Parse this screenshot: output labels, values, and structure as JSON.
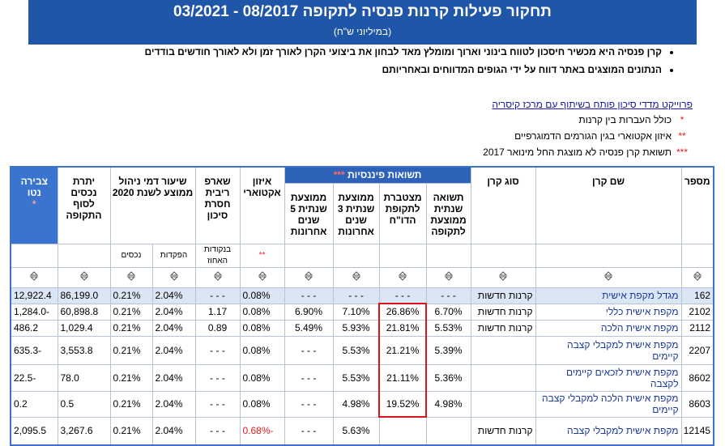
{
  "header": {
    "title": "תחקור פעילות קרנות פנסיה לתקופה 08/2017 - 03/2021",
    "subtitle": "(במיליוני ש\"ח)"
  },
  "bullets": [
    "קרן פנסיה היא מכשיר חיסכון לטווח בינוני וארוך ומומלץ מאד לבחון את ביצועי הקרן לאורך זמן ולא לאורך חודשים בודדים",
    "הנתונים המוצגים באתר דווח על ידי הגופים המדווחים ובאחריותם"
  ],
  "link": "פרוייקט מדדי סיכון פותח בשיתוף עם מרכז קיסריה",
  "footnotes": [
    {
      "mark": "*",
      "text": "כולל העברות בין קרנות"
    },
    {
      "mark": "**",
      "text": "איזון אקטוארי בגין הגורמים הדמוגרפיים"
    },
    {
      "mark": "***",
      "text": "תשואת קרן פנסיה לא מוצגת החל מינואר 2017"
    }
  ],
  "table": {
    "group_header": {
      "label": "תשואות פיננסיות",
      "mark": "***"
    },
    "columns": [
      "מספר",
      "שם קרן",
      "סוג קרן",
      "תשואה שנתית ממוצעת לתקופה",
      "מצטברת לתקופת הדו\"ח",
      "ממוצעת שנתית 3 שנים אחרונות",
      "ממוצעת שנתית 5 שנים אחרונות",
      "איזון אקטוארי",
      "שארפ ריבית חסרת סיכון",
      "שיעור דמי ניהול ממוצע לשנת 2020",
      "יתרת נכסים לסוף התקופה",
      "צבירה נטו"
    ],
    "net_mark": "*",
    "actuarial_mark": "**",
    "sharpe_sub": "בנקודות האחוז",
    "fee_subs": [
      "הפקדות",
      "נכסים"
    ],
    "rows": [
      [
        "162",
        "מגדל מקפת אישית",
        "קרנות חדשות",
        "- - -",
        "- - -",
        "- - -",
        "- - -",
        "0.08%",
        "- - -",
        "2.04%",
        "0.21%",
        "86,199.0",
        "12,922.4"
      ],
      [
        "2102",
        "מקפת אישית כללי",
        "קרנות חדשות",
        "6.70%",
        "26.86%",
        "7.10%",
        "6.90%",
        "0.08%",
        "1.17",
        "2.04%",
        "0.21%",
        "60,898.8",
        "-1,284.0"
      ],
      [
        "2112",
        "מקפת אישית הלכה",
        "קרנות חדשות",
        "5.53%",
        "21.81%",
        "5.93%",
        "5.49%",
        "0.08%",
        "0.89",
        "2.04%",
        "0.21%",
        "1,029.4",
        "486.2"
      ],
      [
        "2207",
        "מקפת אישית למקבלי קצבה קיימים",
        null,
        "5.39%",
        "21.21%",
        "5.53%",
        "- - -",
        "0.08%",
        "- - -",
        "2.04%",
        "0.21%",
        "3,553.8",
        "-635.3"
      ],
      [
        "8602",
        "מקפת אישית לזכאים קיימים לקצבה",
        null,
        "5.36%",
        "21.11%",
        "5.53%",
        "- - -",
        "0.08%",
        "- - -",
        "2.04%",
        "0.21%",
        "78.0",
        "-22.5"
      ],
      [
        "8603",
        "מקפת אישית הלכה למקבלי קצבה קיימים",
        null,
        "4.98%",
        "19.52%",
        "4.98%",
        "- - -",
        "0.08%",
        "- - -",
        "2.04%",
        "0.21%",
        "0.5",
        "0.2"
      ],
      [
        "12145",
        "מקפת אישית למקבלי קצבה",
        "קרנות חדשות",
        null,
        null,
        "5.63%",
        "- - -",
        "-0.68%",
        "- - -",
        "2.04%",
        "0.21%",
        "3,267.6",
        "2,095.5"
      ]
    ]
  }
}
